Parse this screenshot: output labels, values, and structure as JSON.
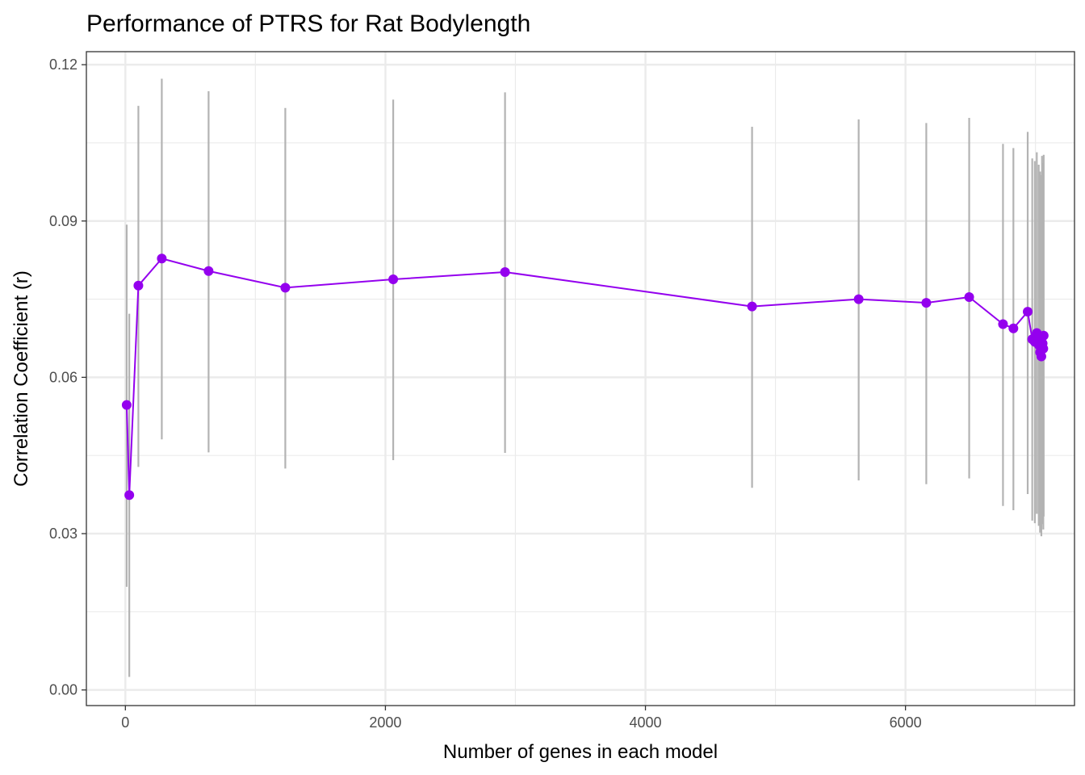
{
  "chart_data": {
    "type": "line",
    "title": "Performance of PTRS for Rat Bodylength",
    "xlabel": "Number of genes in each model",
    "ylabel": "Correlation Coefficient (r)",
    "xlim": [
      -300,
      7300
    ],
    "ylim": [
      -0.003,
      0.1225
    ],
    "x_ticks": [
      0,
      2000,
      4000,
      6000
    ],
    "x_tick_labels": [
      "0",
      "2000",
      "4000",
      "6000"
    ],
    "x_minor": [
      1000,
      3000,
      5000,
      7000
    ],
    "y_ticks": [
      0.0,
      0.03,
      0.06,
      0.09,
      0.12
    ],
    "y_tick_labels": [
      "0.00",
      "0.03",
      "0.06",
      "0.09",
      "0.12"
    ],
    "y_minor": [
      0.015,
      0.045,
      0.075,
      0.105
    ],
    "grid": true,
    "legend": "none",
    "colors": {
      "line": "#9400ee",
      "point": "#9400ee",
      "errorbar": "#b3b3b3",
      "grid": "#ebebeb",
      "frame": "#333333"
    },
    "series": [
      {
        "points": [
          {
            "x": 10,
            "y": 0.0547,
            "lo": 0.0198,
            "hi": 0.0893
          },
          {
            "x": 30,
            "y": 0.0374,
            "lo": 0.0025,
            "hi": 0.0722
          },
          {
            "x": 100,
            "y": 0.0776,
            "lo": 0.0428,
            "hi": 0.1121
          },
          {
            "x": 280,
            "y": 0.0828,
            "lo": 0.0481,
            "hi": 0.1173
          },
          {
            "x": 640,
            "y": 0.0804,
            "lo": 0.0456,
            "hi": 0.1149
          },
          {
            "x": 1230,
            "y": 0.0772,
            "lo": 0.0425,
            "hi": 0.1117
          },
          {
            "x": 2060,
            "y": 0.0788,
            "lo": 0.0441,
            "hi": 0.1133
          },
          {
            "x": 2920,
            "y": 0.0802,
            "lo": 0.0455,
            "hi": 0.1147
          },
          {
            "x": 4820,
            "y": 0.0736,
            "lo": 0.0388,
            "hi": 0.1081
          },
          {
            "x": 5640,
            "y": 0.075,
            "lo": 0.0402,
            "hi": 0.1095
          },
          {
            "x": 6160,
            "y": 0.0743,
            "lo": 0.0395,
            "hi": 0.1088
          },
          {
            "x": 6490,
            "y": 0.0754,
            "lo": 0.0406,
            "hi": 0.1098
          },
          {
            "x": 6750,
            "y": 0.0702,
            "lo": 0.0353,
            "hi": 0.1048
          },
          {
            "x": 6830,
            "y": 0.0694,
            "lo": 0.0345,
            "hi": 0.104
          },
          {
            "x": 6940,
            "y": 0.0726,
            "lo": 0.0376,
            "hi": 0.1071
          },
          {
            "x": 6975,
            "y": 0.0673,
            "lo": 0.0325,
            "hi": 0.102
          },
          {
            "x": 6995,
            "y": 0.0668,
            "lo": 0.032,
            "hi": 0.1015
          },
          {
            "x": 7010,
            "y": 0.0685,
            "lo": 0.0338,
            "hi": 0.1032
          },
          {
            "x": 7025,
            "y": 0.0662,
            "lo": 0.0315,
            "hi": 0.1008
          },
          {
            "x": 7035,
            "y": 0.0648,
            "lo": 0.0302,
            "hi": 0.0995
          },
          {
            "x": 7045,
            "y": 0.064,
            "lo": 0.0295,
            "hi": 0.0988
          },
          {
            "x": 7050,
            "y": 0.0678,
            "lo": 0.033,
            "hi": 0.1025
          },
          {
            "x": 7055,
            "y": 0.0665,
            "lo": 0.0318,
            "hi": 0.1012
          },
          {
            "x": 7060,
            "y": 0.0655,
            "lo": 0.0308,
            "hi": 0.1002
          },
          {
            "x": 7063,
            "y": 0.068,
            "lo": 0.0333,
            "hi": 0.1027
          }
        ]
      }
    ]
  }
}
